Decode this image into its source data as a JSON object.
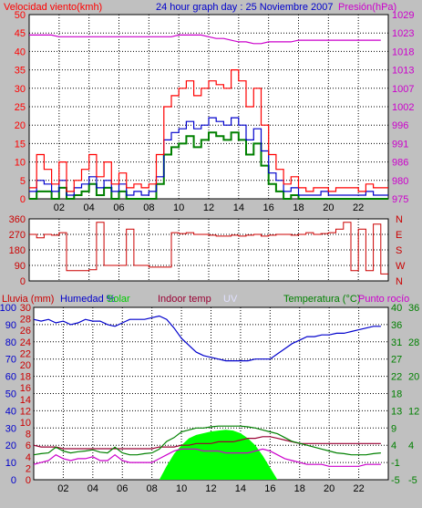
{
  "header": {
    "wind_label": "Velocidad viento(kmh)",
    "graph_title": "24 hour graph day : 25 Noviembre 2007",
    "pressure_label": "Presión(hPa)"
  },
  "bottom_header": {
    "rain": "Lluvia (mm)",
    "humidity": "Humedad %",
    "solar": "Solar",
    "indoor": "Indoor temp",
    "uv": "UV",
    "temperature": "Temperatura (°C)",
    "dewpoint": "Punto rocío"
  },
  "colors": {
    "wind_gust": "#ff0000",
    "wind_avg": "#0000cc",
    "wind_low": "#008000",
    "pressure": "#cc00cc",
    "direction": "#cc0000",
    "humidity": "#0000cc",
    "indoor": "#990033",
    "temperature": "#008000",
    "dewpoint": "#cc00cc",
    "solar": "#00ff00",
    "rain_axis": "#cc0000",
    "temp_axis": "#008000"
  },
  "chart_data": [
    {
      "type": "line",
      "name": "wind_pressure",
      "x": [
        0,
        0.5,
        1,
        1.5,
        2,
        2.5,
        3,
        3.5,
        4,
        4.5,
        5,
        5.5,
        6,
        6.5,
        7,
        7.5,
        8,
        8.5,
        9,
        9.5,
        10,
        10.5,
        11,
        11.5,
        12,
        12.5,
        13,
        13.5,
        14,
        14.5,
        15,
        15.5,
        16,
        16.5,
        17,
        17.5,
        18,
        18.5,
        19,
        19.5,
        20,
        20.5,
        21,
        21.5,
        22,
        22.5,
        23,
        23.5
      ],
      "x_ticks": [
        "02",
        "04",
        "06",
        "08",
        "10",
        "12",
        "14",
        "16",
        "18",
        "20",
        "22"
      ],
      "ylim": [
        0,
        50
      ],
      "y_ticks": [
        0,
        5,
        10,
        15,
        20,
        25,
        30,
        35,
        40,
        45,
        50
      ],
      "y2lim": [
        975,
        1029
      ],
      "y2_ticks": [
        975,
        980,
        986,
        991,
        996,
        1002,
        1007,
        1013,
        1018,
        1023,
        1029
      ],
      "series": [
        {
          "role": "gust",
          "values": [
            3,
            12,
            8,
            4,
            10,
            2,
            5,
            8,
            12,
            6,
            10,
            4,
            7,
            3,
            4,
            3,
            4,
            12,
            25,
            28,
            30,
            32,
            28,
            30,
            32,
            31,
            30,
            35,
            32,
            25,
            30,
            20,
            12,
            8,
            4,
            6,
            3,
            2,
            3,
            3,
            2,
            3,
            3,
            3,
            2,
            4,
            3,
            3
          ]
        },
        {
          "role": "avg",
          "values": [
            2,
            5,
            4,
            2,
            5,
            1,
            3,
            4,
            6,
            3,
            5,
            2,
            4,
            1,
            2,
            1,
            2,
            6,
            16,
            18,
            19,
            21,
            19,
            20,
            22,
            21,
            20,
            22,
            20,
            16,
            19,
            13,
            7,
            5,
            2,
            3,
            1,
            1,
            1,
            2,
            1,
            1,
            1,
            1,
            1,
            2,
            1,
            1
          ]
        },
        {
          "role": "low",
          "values": [
            0,
            2,
            2,
            0,
            3,
            0,
            1,
            2,
            4,
            1,
            3,
            0,
            2,
            0,
            0,
            0,
            0,
            4,
            12,
            14,
            15,
            17,
            14,
            16,
            18,
            17,
            16,
            18,
            16,
            12,
            15,
            9,
            4,
            2,
            0,
            1,
            0,
            0,
            0,
            0,
            0,
            0,
            0,
            0,
            0,
            0,
            0,
            0
          ]
        },
        {
          "role": "pressure",
          "values": [
            1023,
            1023,
            1023,
            1023,
            1022.5,
            1022.5,
            1022.5,
            1022.5,
            1022.5,
            1022.5,
            1022.5,
            1022.5,
            1022.5,
            1022.5,
            1022.5,
            1022.5,
            1022.5,
            1022.5,
            1022.5,
            1022.5,
            1023,
            1023,
            1023,
            1023,
            1022.5,
            1022,
            1022,
            1021.5,
            1021,
            1021,
            1020.5,
            1020.5,
            1021,
            1021,
            1021,
            1021,
            1021.5,
            1021.5,
            1021.5,
            1021.5,
            1021.5,
            1021.5,
            1021.5,
            1021.5,
            1021.5,
            1021.5,
            1021.5,
            1021.5
          ]
        }
      ]
    },
    {
      "type": "line",
      "name": "wind_direction",
      "x": [
        0,
        0.5,
        1,
        1.5,
        2,
        2.5,
        3,
        3.5,
        4,
        4.5,
        5,
        5.5,
        6,
        6.5,
        7,
        7.5,
        8,
        8.5,
        9,
        9.5,
        10,
        10.5,
        11,
        11.5,
        12,
        12.5,
        13,
        13.5,
        14,
        14.5,
        15,
        15.5,
        16,
        16.5,
        17,
        17.5,
        18,
        18.5,
        19,
        19.5,
        20,
        20.5,
        21,
        21.5,
        22,
        22.5,
        23,
        23.5
      ],
      "ylim": [
        0,
        360
      ],
      "y_ticks": [
        0,
        90,
        180,
        270,
        360
      ],
      "y_right_ticks": [
        "N",
        "W",
        "S",
        "E",
        "N"
      ],
      "series": [
        {
          "role": "direction",
          "values": [
            270,
            250,
            270,
            265,
            280,
            60,
            60,
            60,
            65,
            340,
            90,
            90,
            90,
            300,
            90,
            90,
            80,
            80,
            80,
            280,
            275,
            280,
            270,
            270,
            265,
            260,
            260,
            265,
            260,
            265,
            270,
            260,
            265,
            270,
            270,
            265,
            270,
            280,
            270,
            275,
            280,
            300,
            340,
            60,
            300,
            60,
            330,
            40
          ]
        }
      ]
    },
    {
      "type": "line",
      "name": "rain_humidity_temp",
      "x": [
        0,
        0.5,
        1,
        1.5,
        2,
        2.5,
        3,
        3.5,
        4,
        4.5,
        5,
        5.5,
        6,
        6.5,
        7,
        7.5,
        8,
        8.5,
        9,
        9.5,
        10,
        10.5,
        11,
        11.5,
        12,
        12.5,
        13,
        13.5,
        14,
        14.5,
        15,
        15.5,
        16,
        16.5,
        17,
        17.5,
        18,
        18.5,
        19,
        19.5,
        20,
        20.5,
        21,
        21.5,
        22,
        22.5,
        23,
        23.5
      ],
      "ylim": [
        0,
        100
      ],
      "y_ticks_humidity": [
        0,
        10,
        20,
        30,
        40,
        50,
        60,
        70,
        80,
        90,
        100
      ],
      "y_ticks_rain": [
        0,
        2,
        4,
        6,
        8,
        10,
        12,
        14,
        16,
        18,
        20,
        22,
        24,
        26,
        28,
        30
      ],
      "y2lim": [
        -5,
        40
      ],
      "y2_ticks_temp": [
        -5,
        -1,
        4,
        9,
        13,
        18,
        22,
        27,
        31,
        36,
        40
      ],
      "y2_ticks_dew": [
        -5,
        4,
        12,
        20,
        28,
        36
      ],
      "series": [
        {
          "role": "humidity",
          "values": [
            93,
            92,
            93,
            91,
            92,
            90,
            91,
            93,
            92,
            92,
            90,
            89,
            91,
            93,
            93,
            93,
            94,
            95,
            93,
            88,
            82,
            78,
            74,
            72,
            71,
            70,
            69,
            69,
            69,
            69,
            70,
            70,
            70,
            73,
            76,
            79,
            81,
            83,
            83,
            84,
            84,
            85,
            85,
            86,
            87,
            88,
            89,
            89
          ]
        },
        {
          "role": "indoor",
          "values": [
            20,
            19,
            19,
            19,
            18,
            18,
            18,
            18,
            18,
            18,
            18,
            18,
            18,
            18,
            18,
            18,
            18,
            19,
            19,
            19,
            20,
            20,
            21,
            21,
            21,
            22,
            22,
            22,
            23,
            24,
            24,
            25,
            25,
            24,
            23,
            22,
            21,
            21,
            21,
            21,
            21,
            21,
            21,
            21,
            21,
            21,
            21,
            21
          ]
        },
        {
          "role": "temperature",
          "values": [
            1.5,
            1.8,
            2,
            3.5,
            2.5,
            2,
            2.3,
            2.5,
            2.8,
            2.2,
            2,
            3.5,
            2,
            1.5,
            1.5,
            1.8,
            2,
            3,
            5,
            6,
            7.5,
            8,
            8.5,
            8.5,
            8.8,
            9,
            9,
            9,
            9,
            8.8,
            8.5,
            8,
            7.5,
            7,
            6,
            5,
            4.5,
            4,
            3.5,
            3,
            2.5,
            2,
            1.8,
            1.5,
            1.5,
            1.5,
            1.8,
            2
          ]
        },
        {
          "role": "dewpoint",
          "values": [
            -1,
            -0.5,
            0,
            1.5,
            0.5,
            0,
            0.5,
            0.5,
            1,
            0,
            0,
            1.5,
            0,
            -0.5,
            -0.5,
            -0.5,
            -0.5,
            0.5,
            1.5,
            2.5,
            3,
            3,
            3,
            2.5,
            2.5,
            2.5,
            2,
            2,
            2,
            2,
            2.5,
            3,
            2.5,
            1.5,
            0.5,
            0,
            -0.5,
            -1,
            -1,
            -1,
            -1.5,
            -1.5,
            -1.5,
            -1.5,
            -1.5,
            -1,
            -1,
            -1
          ]
        },
        {
          "role": "solar",
          "values": [
            0,
            0,
            0,
            0,
            0,
            0,
            0,
            0,
            0,
            0,
            0,
            0,
            0,
            0,
            0,
            0,
            0,
            0,
            8,
            15,
            20,
            24,
            26,
            27,
            28,
            28.5,
            29,
            28.5,
            27,
            24,
            20,
            14,
            7,
            0,
            0,
            0,
            0,
            0,
            0,
            0,
            0,
            0,
            0,
            0,
            0,
            0,
            0,
            0
          ]
        }
      ]
    }
  ]
}
